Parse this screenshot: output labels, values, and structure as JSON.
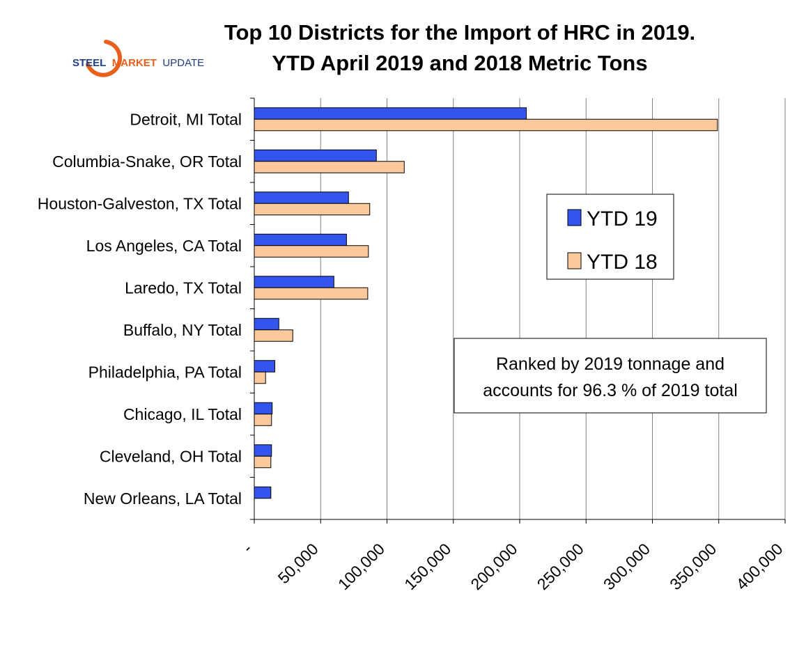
{
  "logo": {
    "word1": "STEEL",
    "word2": "MARKET",
    "word3": "UPDATE",
    "navy": "#1f3c88",
    "orange": "#e8601c"
  },
  "chart_data": {
    "type": "bar",
    "orientation": "horizontal",
    "title": [
      "Top 10 Districts for the Import of HRC in 2019.",
      "YTD April 2019 and 2018 Metric Tons"
    ],
    "categories": [
      "Detroit, MI Total",
      "Columbia-Snake, OR Total",
      "Houston-Galveston, TX Total",
      "Los Angeles, CA Total",
      "Laredo, TX Total",
      "Buffalo, NY Total",
      "Philadelphia, PA Total",
      "Chicago, IL Total",
      "Cleveland, OH Total",
      "New Orleans, LA Total"
    ],
    "series": [
      {
        "name": "YTD 19",
        "color": "#3355ee",
        "values": [
          205000,
          92000,
          71000,
          69500,
          60000,
          18500,
          15500,
          13500,
          13000,
          12500
        ]
      },
      {
        "name": "YTD 18",
        "color": "#fcc99c",
        "values": [
          349000,
          113000,
          87000,
          86000,
          85500,
          29000,
          8500,
          13000,
          12500,
          0
        ]
      }
    ],
    "xlim": [
      0,
      400000
    ],
    "xticks": [
      0,
      50000,
      100000,
      150000,
      200000,
      250000,
      300000,
      350000,
      400000
    ],
    "xtick_labels": [
      "-",
      "50,000",
      "100,000",
      "150,000",
      "200,000",
      "250,000",
      "300,000",
      "350,000",
      "400,000"
    ],
    "grid": true,
    "legend_position": "right-middle",
    "annotation": [
      "Ranked by 2019 tonnage and",
      "accounts for 96.3 % of 2019 total"
    ]
  }
}
